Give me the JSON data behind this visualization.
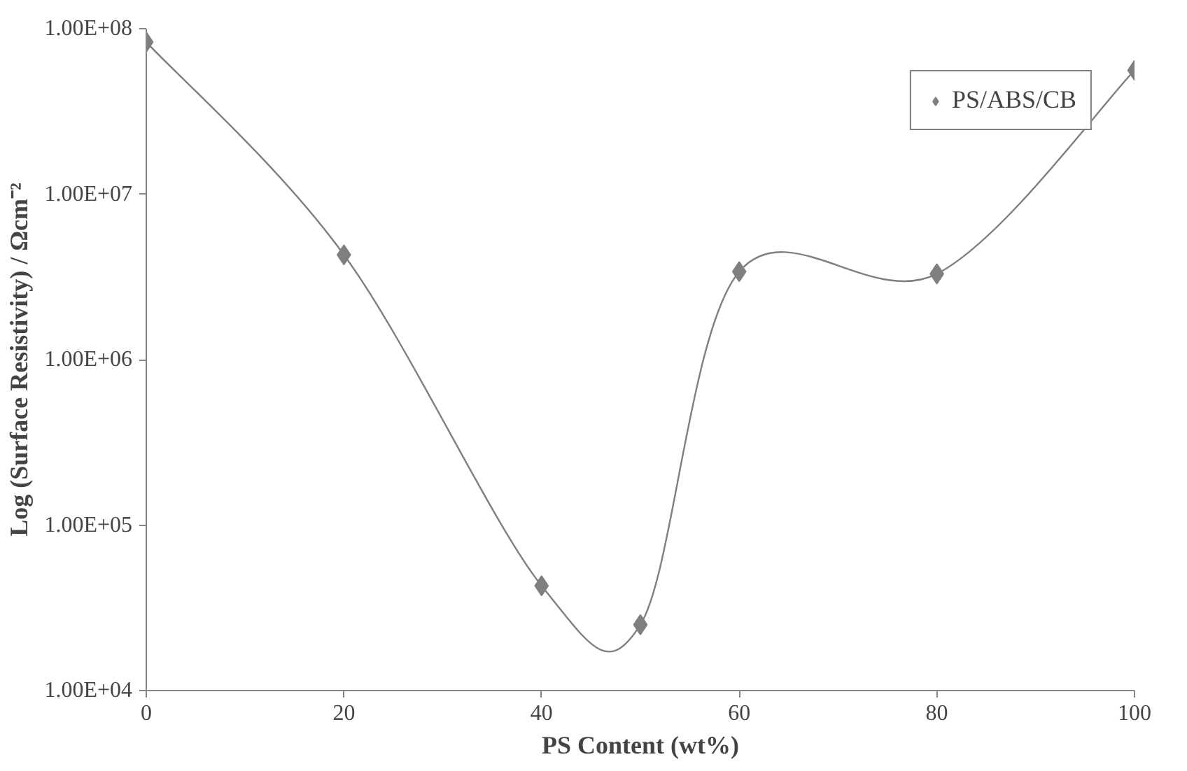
{
  "chart_data": {
    "type": "line",
    "xlabel": "PS Content (wt%)",
    "ylabel": "Log (Surface Resistivity) / Ωcm⁻²",
    "x": [
      0,
      20,
      40,
      50,
      60,
      80,
      100
    ],
    "series": [
      {
        "name": "PS/ABS/CB",
        "color": "#7f7f7f",
        "values": [
          83000000,
          4300000,
          43000,
          25000,
          3400000,
          3300000,
          56000000
        ]
      }
    ],
    "log": "y",
    "xlim": [
      0,
      100
    ],
    "ylim": [
      10000,
      100000000
    ],
    "xticks": [
      0,
      20,
      40,
      60,
      80,
      100
    ],
    "yticks": [
      {
        "value": 10000,
        "label": "1.00E+04"
      },
      {
        "value": 100000,
        "label": "1.00E+05"
      },
      {
        "value": 1000000,
        "label": "1.00E+06"
      },
      {
        "value": 10000000,
        "label": "1.00E+07"
      },
      {
        "value": 100000000,
        "label": "1.00E+08"
      }
    ],
    "grid": false,
    "legend": "top right",
    "marker": "diamond",
    "line_style": "solid"
  }
}
